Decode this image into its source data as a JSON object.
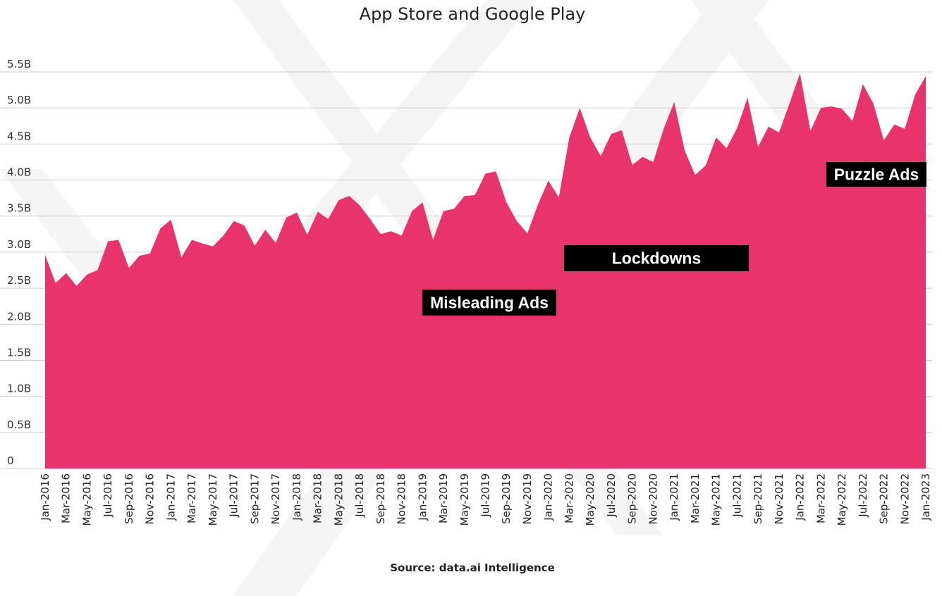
{
  "source": "Source: data.ai Intelligence",
  "annotations": [
    "Misleading Ads",
    "Lockdowns",
    "Puzzle Ads"
  ],
  "colors": {
    "area": "#e9336d",
    "grid": "#cccccc",
    "watermark": "#ececec",
    "annotation_bg": "#000000"
  },
  "chart_data": {
    "type": "area",
    "title": "App Store and Google Play",
    "xlabel": "",
    "ylabel": "",
    "ylim": [
      0,
      5500000000
    ],
    "grid": true,
    "y_ticks": [
      0,
      500000000,
      1000000000,
      1500000000,
      2000000000,
      2500000000,
      3000000000,
      3500000000,
      4000000000,
      4500000000,
      5000000000,
      5500000000
    ],
    "y_tick_labels": [
      "0",
      "0.5B",
      "1.0B",
      "1.5B",
      "2.0B",
      "2.5B",
      "3.0B",
      "3.5B",
      "4.0B",
      "4.5B",
      "5.0B",
      "5.5B"
    ],
    "x_tick_labels": [
      "Jan-2016",
      "Mar-2016",
      "May-2016",
      "Jul-2016",
      "Sep-2016",
      "Nov-2016",
      "Jan-2017",
      "Mar-2017",
      "May-2017",
      "Jul-2017",
      "Sep-2017",
      "Nov-2017",
      "Jan-2018",
      "Mar-2018",
      "May-2018",
      "Jul-2018",
      "Sep-2018",
      "Nov-2018",
      "Jan-2019",
      "Mar-2019",
      "May-2019",
      "Jul-2019",
      "Sep-2019",
      "Nov-2019",
      "Jan-2020",
      "Mar-2020",
      "May-2020",
      "Jul-2020",
      "Sep-2020",
      "Nov-2020",
      "Jan-2021",
      "Mar-2021",
      "May-2021",
      "Jul-2021",
      "Sep-2021",
      "Nov-2021",
      "Jan-2022",
      "Mar-2022",
      "May-2022",
      "Jul-2022",
      "Sep-2022",
      "Nov-2022",
      "Jan-2023"
    ],
    "x": [
      "Jan-2016",
      "Feb-2016",
      "Mar-2016",
      "Apr-2016",
      "May-2016",
      "Jun-2016",
      "Jul-2016",
      "Aug-2016",
      "Sep-2016",
      "Oct-2016",
      "Nov-2016",
      "Dec-2016",
      "Jan-2017",
      "Feb-2017",
      "Mar-2017",
      "Apr-2017",
      "May-2017",
      "Jun-2017",
      "Jul-2017",
      "Aug-2017",
      "Sep-2017",
      "Oct-2017",
      "Nov-2017",
      "Dec-2017",
      "Jan-2018",
      "Feb-2018",
      "Mar-2018",
      "Apr-2018",
      "May-2018",
      "Jun-2018",
      "Jul-2018",
      "Aug-2018",
      "Sep-2018",
      "Oct-2018",
      "Nov-2018",
      "Dec-2018",
      "Jan-2019",
      "Feb-2019",
      "Mar-2019",
      "Apr-2019",
      "May-2019",
      "Jun-2019",
      "Jul-2019",
      "Aug-2019",
      "Sep-2019",
      "Oct-2019",
      "Nov-2019",
      "Dec-2019",
      "Jan-2020",
      "Feb-2020",
      "Mar-2020",
      "Apr-2020",
      "May-2020",
      "Jun-2020",
      "Jul-2020",
      "Aug-2020",
      "Sep-2020",
      "Oct-2020",
      "Nov-2020",
      "Dec-2020",
      "Jan-2021",
      "Feb-2021",
      "Mar-2021",
      "Apr-2021",
      "May-2021",
      "Jun-2021",
      "Jul-2021",
      "Aug-2021",
      "Sep-2021",
      "Oct-2021",
      "Nov-2021",
      "Dec-2021",
      "Jan-2022",
      "Feb-2022",
      "Mar-2022",
      "Apr-2022",
      "May-2022",
      "Jun-2022",
      "Jul-2022",
      "Aug-2022",
      "Sep-2022",
      "Oct-2022",
      "Nov-2022",
      "Dec-2022",
      "Jan-2023"
    ],
    "series": [
      {
        "values": [
          2960000000,
          2570000000,
          2710000000,
          2530000000,
          2690000000,
          2750000000,
          3150000000,
          3170000000,
          2780000000,
          2950000000,
          2980000000,
          3330000000,
          3450000000,
          2930000000,
          3170000000,
          3120000000,
          3080000000,
          3230000000,
          3430000000,
          3370000000,
          3090000000,
          3310000000,
          3130000000,
          3480000000,
          3550000000,
          3240000000,
          3560000000,
          3460000000,
          3720000000,
          3780000000,
          3650000000,
          3460000000,
          3250000000,
          3290000000,
          3230000000,
          3570000000,
          3690000000,
          3170000000,
          3570000000,
          3600000000,
          3780000000,
          3790000000,
          4090000000,
          4120000000,
          3690000000,
          3430000000,
          3260000000,
          3660000000,
          3990000000,
          3760000000,
          4590000000,
          5000000000,
          4590000000,
          4330000000,
          4640000000,
          4690000000,
          4210000000,
          4320000000,
          4250000000,
          4710000000,
          5080000000,
          4410000000,
          4070000000,
          4200000000,
          4590000000,
          4440000000,
          4720000000,
          5140000000,
          4460000000,
          4740000000,
          4660000000,
          5060000000,
          5480000000,
          4680000000,
          5000000000,
          5020000000,
          4990000000,
          4820000000,
          5330000000,
          5060000000,
          4550000000,
          4770000000,
          4710000000,
          5190000000,
          5440000000
        ]
      }
    ]
  }
}
